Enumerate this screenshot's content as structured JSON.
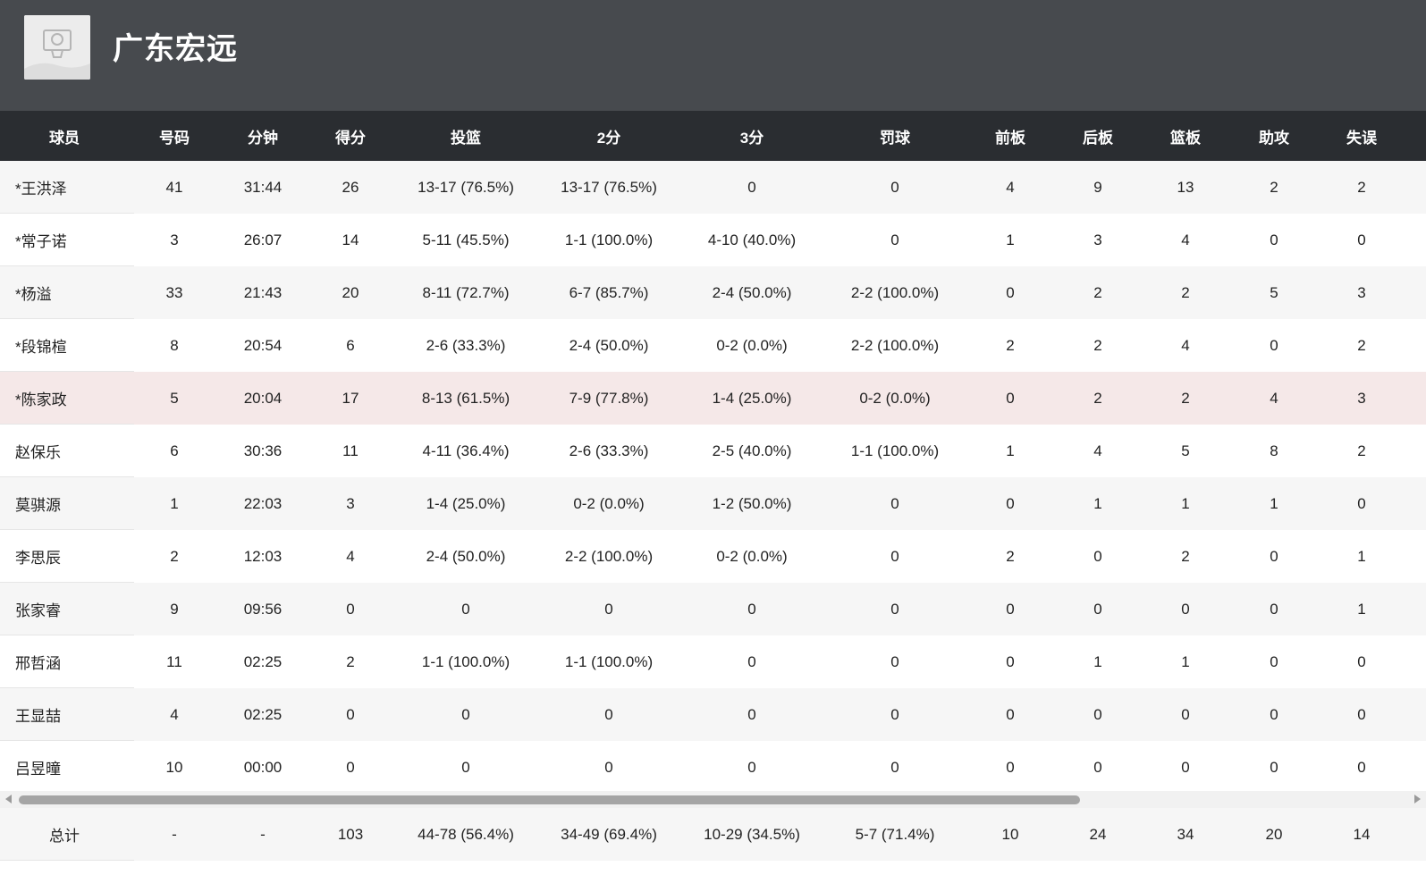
{
  "team": {
    "name": "广东宏远",
    "logo": "team-logo-placeholder"
  },
  "columns": [
    "球员",
    "号码",
    "分钟",
    "得分",
    "投篮",
    "2分",
    "3分",
    "罚球",
    "前板",
    "后板",
    "篮板",
    "助攻",
    "失误"
  ],
  "rows": [
    [
      "*王洪泽",
      "41",
      "31:44",
      "26",
      "13-17 (76.5%)",
      "13-17 (76.5%)",
      "0",
      "0",
      "4",
      "9",
      "13",
      "2",
      "2"
    ],
    [
      "*常子诺",
      "3",
      "26:07",
      "14",
      "5-11 (45.5%)",
      "1-1 (100.0%)",
      "4-10 (40.0%)",
      "0",
      "1",
      "3",
      "4",
      "0",
      "0"
    ],
    [
      " *杨溢",
      "33",
      "21:43",
      "20",
      "8-11 (72.7%)",
      "6-7 (85.7%)",
      "2-4 (50.0%)",
      "2-2 (100.0%)",
      "0",
      "2",
      "2",
      "5",
      "3"
    ],
    [
      "*段锦楦",
      "8",
      "20:54",
      "6",
      "2-6 (33.3%)",
      "2-4 (50.0%)",
      "0-2 (0.0%)",
      "2-2 (100.0%)",
      "2",
      "2",
      "4",
      "0",
      "2"
    ],
    [
      "*陈家政",
      "5",
      "20:04",
      "17",
      "8-13 (61.5%)",
      "7-9 (77.8%)",
      "1-4 (25.0%)",
      "0-2 (0.0%)",
      "0",
      "2",
      "2",
      "4",
      "3"
    ],
    [
      "赵保乐",
      "6",
      "30:36",
      "11",
      "4-11 (36.4%)",
      "2-6 (33.3%)",
      "2-5 (40.0%)",
      "1-1 (100.0%)",
      "1",
      "4",
      "5",
      "8",
      "2"
    ],
    [
      "莫骐源",
      "1",
      "22:03",
      "3",
      "1-4 (25.0%)",
      "0-2 (0.0%)",
      "1-2 (50.0%)",
      "0",
      "0",
      "1",
      "1",
      "1",
      "0"
    ],
    [
      "李思辰",
      "2",
      "12:03",
      "4",
      "2-4 (50.0%)",
      "2-2 (100.0%)",
      "0-2 (0.0%)",
      "0",
      "2",
      "0",
      "2",
      "0",
      "1"
    ],
    [
      "张家睿",
      "9",
      "09:56",
      "0",
      "0",
      "0",
      "0",
      "0",
      "0",
      "0",
      "0",
      "0",
      "1"
    ],
    [
      "邢哲涵",
      "11",
      "02:25",
      "2",
      "1-1 (100.0%)",
      "1-1 (100.0%)",
      "0",
      "0",
      "0",
      "1",
      "1",
      "0",
      "0"
    ],
    [
      "王显喆",
      "4",
      "02:25",
      "0",
      "0",
      "0",
      "0",
      "0",
      "0",
      "0",
      "0",
      "0",
      "0"
    ],
    [
      "吕昱曈",
      "10",
      "00:00",
      "0",
      "0",
      "0",
      "0",
      "0",
      "0",
      "0",
      "0",
      "0",
      "0"
    ]
  ],
  "totals": [
    "总计",
    "-",
    "-",
    "103",
    "44-78 (56.4%)",
    "34-49 (69.4%)",
    "10-29 (34.5%)",
    "5-7 (71.4%)",
    "10",
    "24",
    "34",
    "20",
    "14"
  ],
  "colors": {
    "header_bg": "#474a4e",
    "thead_bg": "#2a2d31",
    "alt_row_bg": "#f6f6f6",
    "highlight_row_bg": "#f5e8e8"
  }
}
